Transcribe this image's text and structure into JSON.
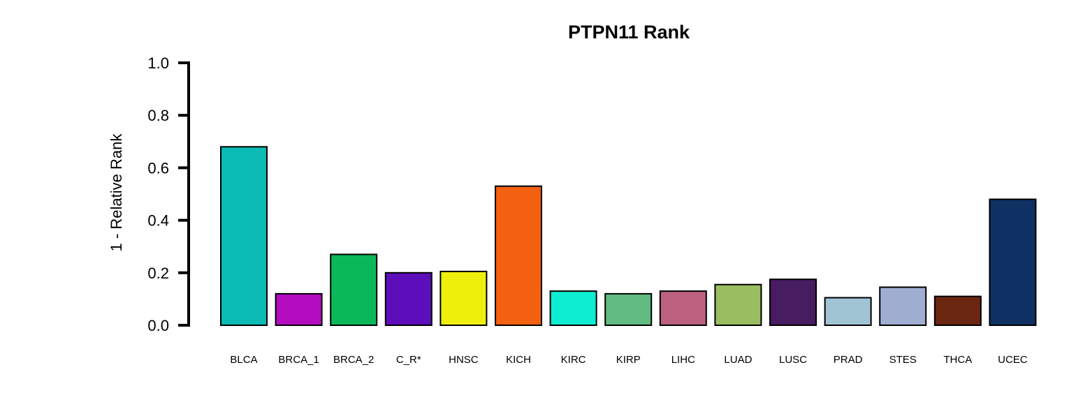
{
  "chart_data": {
    "type": "bar",
    "title": "PTPN11 Rank",
    "xlabel": "",
    "ylabel": "1 - Relative Rank",
    "ylim": [
      0,
      1.0
    ],
    "yticks": [
      "0.0",
      "0.2",
      "0.4",
      "0.6",
      "0.8",
      "1.0"
    ],
    "grid": false,
    "legend": "none",
    "categories": [
      "BLCA",
      "BRCA_1",
      "BRCA_2",
      "C_R*",
      "HNSC",
      "KICH",
      "KIRC",
      "KIRP",
      "LIHC",
      "LUAD",
      "LUSC",
      "PRAD",
      "STES",
      "THCA",
      "UCEC"
    ],
    "values": [
      0.68,
      0.12,
      0.27,
      0.2,
      0.205,
      0.53,
      0.13,
      0.12,
      0.13,
      0.155,
      0.175,
      0.105,
      0.145,
      0.11,
      0.48
    ],
    "colors": [
      "#0ABAB5",
      "#B30DBF",
      "#0AB85A",
      "#5E0DBB",
      "#EEF00C",
      "#F26010",
      "#0EEDD2",
      "#62BB80",
      "#BD6180",
      "#99BE62",
      "#471C61",
      "#A0C4D4",
      "#A0AED2",
      "#6A2610",
      "#0F3063"
    ]
  }
}
